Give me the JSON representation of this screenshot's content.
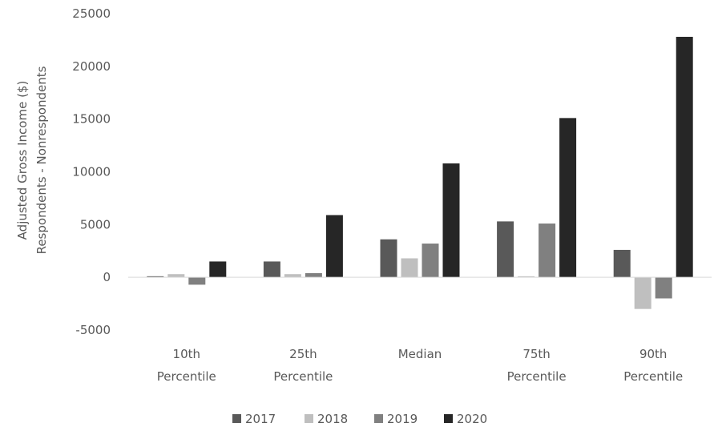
{
  "chart_data": {
    "type": "bar",
    "title": "",
    "xlabel": "",
    "ylabel_lines": [
      "Adjusted Gross Income ($)",
      "Respondents - Nonrespondents"
    ],
    "categories": [
      {
        "line1": "10th",
        "line2": "Percentile"
      },
      {
        "line1": "25th",
        "line2": "Percentile"
      },
      {
        "line1": "Median",
        "line2": ""
      },
      {
        "line1": "75th",
        "line2": "Percentile"
      },
      {
        "line1": "90th",
        "line2": "Percentile"
      }
    ],
    "series": [
      {
        "name": "2017",
        "color": "#595959",
        "values": [
          100,
          1500,
          3600,
          5300,
          2600
        ]
      },
      {
        "name": "2018",
        "color": "#bfbfbf",
        "values": [
          300,
          300,
          1800,
          100,
          -3000
        ]
      },
      {
        "name": "2019",
        "color": "#808080",
        "values": [
          -700,
          400,
          3200,
          5100,
          -2000
        ]
      },
      {
        "name": "2020",
        "color": "#262626",
        "values": [
          1500,
          5900,
          10800,
          15100,
          22800
        ]
      }
    ],
    "ylim": [
      -5000,
      25000
    ],
    "yticks": [
      -5000,
      0,
      5000,
      10000,
      15000,
      20000,
      25000
    ],
    "ytick_labels": [
      "-5000",
      "0",
      "5000",
      "10000",
      "15000",
      "20000",
      "25000"
    ],
    "grid": false,
    "legend_position": "bottom"
  }
}
